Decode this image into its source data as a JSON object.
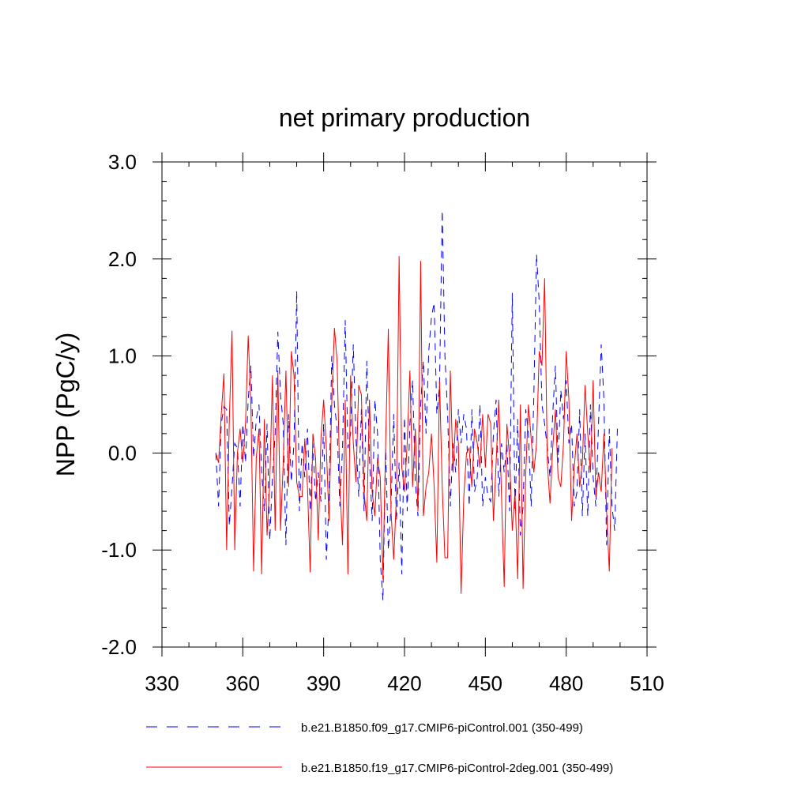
{
  "chart_data": {
    "type": "line",
    "title": "net primary production",
    "xlabel": "",
    "ylabel": "NPP  (PgC/y)",
    "xlim": [
      330,
      510
    ],
    "ylim": [
      -2.0,
      3.0
    ],
    "x_ticks": [
      "330",
      "360",
      "390",
      "420",
      "450",
      "480",
      "510"
    ],
    "y_ticks": [
      "-2.0",
      "-1.0",
      "0.0",
      "1.0",
      "2.0",
      "3.0"
    ],
    "x_start": 350,
    "legend_position": "bottom",
    "series": [
      {
        "name": "b.e21.B1850.f09_g17.CMIP6-piControl.001 (350-499)",
        "color": "#0000ff",
        "style": "dashed",
        "values": [
          0.0,
          -0.55,
          0.3,
          0.48,
          0.45,
          -0.75,
          -0.35,
          0.1,
          0.05,
          -0.55,
          0.3,
          -0.1,
          0.55,
          0.9,
          -0.05,
          0.35,
          0.5,
          -0.2,
          -0.6,
          0.3,
          -0.9,
          -0.25,
          0.2,
          1.25,
          0.6,
          0.3,
          -0.95,
          0.4,
          -0.3,
          0.1,
          1.67,
          -0.6,
          0.1,
          -0.25,
          0.25,
          -0.6,
          0.1,
          -0.5,
          -0.2,
          -0.5,
          0.3,
          -1.1,
          -0.5,
          1.0,
          0.5,
          0.25,
          -0.55,
          0.05,
          1.37,
          0.05,
          0.2,
          1.12,
          0.15,
          -0.45,
          0.45,
          -0.6,
          0.95,
          -0.05,
          -0.7,
          0.55,
          0.2,
          -1.1,
          -1.52,
          0.05,
          -1.0,
          -0.55,
          0.4,
          -0.7,
          -0.1,
          -1.25,
          0.37,
          -0.6,
          0.3,
          0.75,
          -0.3,
          -0.65,
          0.5,
          0.95,
          0.2,
          1.05,
          1.4,
          1.55,
          0.4,
          0.7,
          2.5,
          1.0,
          0.4,
          -0.55,
          0.1,
          -0.2,
          0.45,
          0.1,
          0.4,
          0.25,
          -0.55,
          0.45,
          -0.4,
          -0.25,
          0.5,
          -0.55,
          -0.25,
          -0.45,
          -0.5,
          0.2,
          0.55,
          -0.45,
          0.1,
          -0.2,
          0.1,
          -0.6,
          1.65,
          -0.6,
          0.35,
          -0.85,
          -0.55,
          0.45,
          0.2,
          -0.55,
          0.6,
          2.05,
          1.55,
          0.5,
          0.3,
          0.05,
          -0.25,
          0.4,
          0.9,
          -0.1,
          0.65,
          0.35,
          0.75,
          0.1,
          0.3,
          -0.55,
          -0.4,
          0.45,
          -0.65,
          0.2,
          -0.65,
          0.5,
          -0.25,
          -0.55,
          0.3,
          1.12,
          0.55,
          -0.95,
          0.25,
          -0.55,
          -0.8,
          0.25
        ]
      },
      {
        "name": "b.e21.B1850.f19_g17.CMIP6-piControl-2deg.001 (350-499)",
        "color": "#ff0000",
        "style": "solid",
        "values": [
          0.0,
          -0.1,
          0.4,
          0.82,
          -1.0,
          0.35,
          1.26,
          -1.0,
          0.0,
          0.25,
          -0.1,
          0.3,
          1.21,
          0.5,
          -1.22,
          -0.05,
          0.25,
          -1.25,
          0.35,
          -0.85,
          -0.3,
          0.8,
          -0.8,
          0.85,
          -0.8,
          -0.1,
          0.85,
          -0.35,
          1.05,
          0.8,
          -0.3,
          -0.45,
          -0.45,
          0.15,
          -0.35,
          -1.23,
          0.2,
          -0.05,
          -0.9,
          0.15,
          0.55,
          0.05,
          -0.7,
          0.5,
          1.29,
          0.95,
          -0.3,
          -0.95,
          0.55,
          -1.25,
          0.8,
          0.1,
          -0.3,
          0.7,
          0.6,
          -0.4,
          -0.7,
          0.55,
          -0.4,
          -0.65,
          -0.05,
          -0.25,
          -1.3,
          0.1,
          1.28,
          -0.6,
          -1.1,
          -0.45,
          2.03,
          -0.15,
          -0.4,
          0.1,
          0.85,
          -0.35,
          0.25,
          -0.6,
          1.98,
          -0.65,
          -0.35,
          -0.2,
          0.2,
          -0.35,
          -1.13,
          0.75,
          -0.35,
          -1.08,
          -1.08,
          0.85,
          -0.2,
          0.35,
          0.1,
          -1.45,
          -0.45,
          0.0,
          0.05,
          -0.35,
          0.25,
          0.1,
          -0.15,
          0.4,
          -0.15,
          0.4,
          0.3,
          -0.7,
          -0.1,
          0.55,
          -0.45,
          -1.38,
          0.3,
          -0.05,
          -0.8,
          -0.4,
          -1.3,
          0.5,
          -1.4,
          -0.2,
          0.5,
          0.15,
          -0.2,
          0.1,
          1.05,
          0.9,
          1.8,
          -0.1,
          -0.52,
          0.05,
          0.45,
          -0.25,
          -0.35,
          0.1,
          1.05,
          0.55,
          -0.7,
          -0.15,
          0.2,
          -0.35,
          -0.1,
          0.7,
          0.2,
          -0.2,
          0.75,
          -0.45,
          -0.2,
          -0.4,
          0.2,
          -0.6,
          -1.22,
          0.05
        ]
      }
    ]
  }
}
